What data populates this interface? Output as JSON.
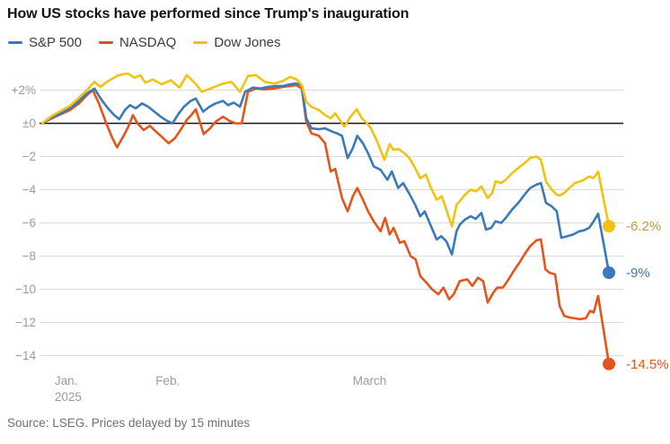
{
  "title": "How US stocks have performed since Trump's inauguration",
  "source": "Source: LSEG. Prices delayed by 15 minutes",
  "legend": [
    {
      "label": "S&P 500",
      "color": "#3a7ab8"
    },
    {
      "label": "NASDAQ",
      "color": "#c8552e"
    },
    {
      "label": "Dow Jones",
      "color": "#ecc20f"
    }
  ],
  "colors": {
    "grid": "#dbdbdb",
    "zero_line": "#141414",
    "axis_text": "#9b9b9b"
  },
  "chart_data": {
    "type": "line",
    "title": "How US stocks have performed since Trump's inauguration",
    "xlabel": "",
    "ylabel": "% change since inauguration",
    "grid": true,
    "legend_position": "top-left",
    "x_axis": {
      "ticks": [
        {
          "label": "Jan.",
          "sublabel": "2025",
          "pos": 0.022
        },
        {
          "label": "Feb.",
          "pos": 0.2
        },
        {
          "label": "March",
          "pos": 0.548
        }
      ]
    },
    "y_axis": {
      "unit": "%",
      "range": [
        -15.6,
        3.3
      ],
      "ticks": [
        {
          "label": "+2%",
          "value": 2
        },
        {
          "label": "±0",
          "value": 0
        },
        {
          "label": "−2",
          "value": -2
        },
        {
          "label": "−4",
          "value": -4
        },
        {
          "label": "−6",
          "value": -6
        },
        {
          "label": "−8",
          "value": -8
        },
        {
          "label": "−10",
          "value": -10
        },
        {
          "label": "−12",
          "value": -12
        },
        {
          "label": "−14",
          "value": -14
        }
      ]
    },
    "series": [
      {
        "name": "S&P 500",
        "color": "#3a7ab8",
        "label_color": "#3a7ab8",
        "end_label": "-9%",
        "end_value": -9.0,
        "points": [
          [
            0,
            0
          ],
          [
            0.017,
            0.35
          ],
          [
            0.033,
            0.6
          ],
          [
            0.049,
            0.9
          ],
          [
            0.065,
            1.35
          ],
          [
            0.079,
            1.8
          ],
          [
            0.092,
            2.1
          ],
          [
            0.103,
            1.5
          ],
          [
            0.116,
            0.9
          ],
          [
            0.127,
            0.5
          ],
          [
            0.136,
            0.25
          ],
          [
            0.146,
            0.8
          ],
          [
            0.155,
            1.1
          ],
          [
            0.165,
            0.9
          ],
          [
            0.176,
            1.2
          ],
          [
            0.187,
            1.0
          ],
          [
            0.198,
            0.7
          ],
          [
            0.209,
            0.4
          ],
          [
            0.22,
            0.15
          ],
          [
            0.23,
            0.0
          ],
          [
            0.241,
            0.6
          ],
          [
            0.25,
            1.0
          ],
          [
            0.262,
            1.35
          ],
          [
            0.271,
            1.5
          ],
          [
            0.284,
            0.7
          ],
          [
            0.295,
            1.0
          ],
          [
            0.306,
            1.2
          ],
          [
            0.319,
            1.35
          ],
          [
            0.328,
            1.1
          ],
          [
            0.338,
            1.25
          ],
          [
            0.349,
            1.0
          ],
          [
            0.358,
            1.9
          ],
          [
            0.372,
            2.15
          ],
          [
            0.385,
            2.1
          ],
          [
            0.399,
            2.2
          ],
          [
            0.412,
            2.25
          ],
          [
            0.425,
            2.25
          ],
          [
            0.437,
            2.35
          ],
          [
            0.449,
            2.4
          ],
          [
            0.458,
            2.3
          ],
          [
            0.466,
            0.3
          ],
          [
            0.475,
            -0.3
          ],
          [
            0.488,
            -0.35
          ],
          [
            0.499,
            -0.3
          ],
          [
            0.512,
            -0.5
          ],
          [
            0.52,
            -0.6
          ],
          [
            0.529,
            -0.75
          ],
          [
            0.539,
            -2.1
          ],
          [
            0.548,
            -1.5
          ],
          [
            0.556,
            -0.75
          ],
          [
            0.566,
            -1.2
          ],
          [
            0.575,
            -1.8
          ],
          [
            0.585,
            -2.6
          ],
          [
            0.597,
            -2.8
          ],
          [
            0.609,
            -3.4
          ],
          [
            0.617,
            -2.9
          ],
          [
            0.628,
            -3.9
          ],
          [
            0.637,
            -3.6
          ],
          [
            0.647,
            -4.2
          ],
          [
            0.658,
            -4.9
          ],
          [
            0.667,
            -5.6
          ],
          [
            0.675,
            -5.3
          ],
          [
            0.686,
            -6.2
          ],
          [
            0.696,
            -7.0
          ],
          [
            0.704,
            -6.8
          ],
          [
            0.713,
            -7.1
          ],
          [
            0.723,
            -7.9
          ],
          [
            0.731,
            -6.5
          ],
          [
            0.737,
            -6.1
          ],
          [
            0.746,
            -5.8
          ],
          [
            0.756,
            -5.6
          ],
          [
            0.765,
            -5.75
          ],
          [
            0.775,
            -5.4
          ],
          [
            0.783,
            -6.4
          ],
          [
            0.792,
            -6.3
          ],
          [
            0.8,
            -5.9
          ],
          [
            0.81,
            -6.0
          ],
          [
            0.818,
            -5.7
          ],
          [
            0.829,
            -5.2
          ],
          [
            0.84,
            -4.8
          ],
          [
            0.851,
            -4.3
          ],
          [
            0.861,
            -3.9
          ],
          [
            0.872,
            -3.7
          ],
          [
            0.88,
            -3.6
          ],
          [
            0.889,
            -4.8
          ],
          [
            0.899,
            -5.0
          ],
          [
            0.908,
            -5.3
          ],
          [
            0.916,
            -6.9
          ],
          [
            0.927,
            -6.8
          ],
          [
            0.937,
            -6.7
          ],
          [
            0.948,
            -6.5
          ],
          [
            0.956,
            -6.45
          ],
          [
            0.965,
            -6.3
          ],
          [
            0.973,
            -5.9
          ],
          [
            0.981,
            -5.45
          ],
          [
            1,
            -9.0
          ]
        ]
      },
      {
        "name": "NASDAQ",
        "color": "#e4551c",
        "label_color": "#e4551c",
        "end_label": "-14.5%",
        "end_value": -14.5,
        "points": [
          [
            0,
            0
          ],
          [
            0.017,
            0.3
          ],
          [
            0.033,
            0.55
          ],
          [
            0.049,
            0.8
          ],
          [
            0.065,
            1.2
          ],
          [
            0.079,
            1.7
          ],
          [
            0.089,
            2.0
          ],
          [
            0.1,
            1.2
          ],
          [
            0.113,
            0.0
          ],
          [
            0.124,
            -0.9
          ],
          [
            0.132,
            -1.45
          ],
          [
            0.143,
            -0.8
          ],
          [
            0.152,
            -0.2
          ],
          [
            0.16,
            0.5
          ],
          [
            0.168,
            0.0
          ],
          [
            0.179,
            -0.4
          ],
          [
            0.19,
            -0.15
          ],
          [
            0.201,
            -0.5
          ],
          [
            0.212,
            -0.85
          ],
          [
            0.223,
            -1.2
          ],
          [
            0.234,
            -0.9
          ],
          [
            0.244,
            -0.4
          ],
          [
            0.255,
            0.2
          ],
          [
            0.263,
            0.5
          ],
          [
            0.271,
            0.85
          ],
          [
            0.285,
            -0.65
          ],
          [
            0.296,
            -0.3
          ],
          [
            0.306,
            0.1
          ],
          [
            0.319,
            0.4
          ],
          [
            0.33,
            0.15
          ],
          [
            0.341,
            0.0
          ],
          [
            0.352,
            0.0
          ],
          [
            0.363,
            1.9
          ],
          [
            0.377,
            2.1
          ],
          [
            0.393,
            2.05
          ],
          [
            0.409,
            2.1
          ],
          [
            0.425,
            2.2
          ],
          [
            0.437,
            2.25
          ],
          [
            0.449,
            2.3
          ],
          [
            0.458,
            2.1
          ],
          [
            0.466,
            0.1
          ],
          [
            0.475,
            -0.6
          ],
          [
            0.488,
            -0.75
          ],
          [
            0.499,
            -1.2
          ],
          [
            0.509,
            -2.9
          ],
          [
            0.517,
            -2.75
          ],
          [
            0.529,
            -4.5
          ],
          [
            0.539,
            -5.3
          ],
          [
            0.548,
            -4.4
          ],
          [
            0.556,
            -3.9
          ],
          [
            0.566,
            -4.6
          ],
          [
            0.575,
            -5.3
          ],
          [
            0.585,
            -5.9
          ],
          [
            0.597,
            -6.5
          ],
          [
            0.605,
            -5.7
          ],
          [
            0.613,
            -6.7
          ],
          [
            0.62,
            -6.3
          ],
          [
            0.631,
            -7.2
          ],
          [
            0.639,
            -7.1
          ],
          [
            0.65,
            -8.0
          ],
          [
            0.659,
            -8.2
          ],
          [
            0.667,
            -9.2
          ],
          [
            0.678,
            -9.6
          ],
          [
            0.688,
            -10.0
          ],
          [
            0.699,
            -10.3
          ],
          [
            0.708,
            -9.9
          ],
          [
            0.718,
            -10.6
          ],
          [
            0.726,
            -10.3
          ],
          [
            0.737,
            -9.5
          ],
          [
            0.75,
            -9.4
          ],
          [
            0.759,
            -9.8
          ],
          [
            0.769,
            -9.3
          ],
          [
            0.778,
            -9.5
          ],
          [
            0.786,
            -10.8
          ],
          [
            0.796,
            -10.2
          ],
          [
            0.803,
            -9.9
          ],
          [
            0.813,
            -9.9
          ],
          [
            0.823,
            -9.4
          ],
          [
            0.832,
            -8.9
          ],
          [
            0.842,
            -8.4
          ],
          [
            0.851,
            -7.9
          ],
          [
            0.861,
            -7.4
          ],
          [
            0.872,
            -7.05
          ],
          [
            0.88,
            -7.0
          ],
          [
            0.888,
            -8.8
          ],
          [
            0.895,
            -9.0
          ],
          [
            0.905,
            -9.1
          ],
          [
            0.913,
            -11.0
          ],
          [
            0.921,
            -11.6
          ],
          [
            0.93,
            -11.7
          ],
          [
            0.94,
            -11.75
          ],
          [
            0.949,
            -11.8
          ],
          [
            0.959,
            -11.75
          ],
          [
            0.967,
            -11.3
          ],
          [
            0.973,
            -11.4
          ],
          [
            0.981,
            -10.4
          ],
          [
            1,
            -14.5
          ]
        ]
      },
      {
        "name": "Dow Jones",
        "color": "#f0c212",
        "label_color": "#c49a3a",
        "end_label": "-6.2%",
        "end_value": -6.2,
        "points": [
          [
            0,
            0
          ],
          [
            0.017,
            0.45
          ],
          [
            0.033,
            0.75
          ],
          [
            0.049,
            1.05
          ],
          [
            0.065,
            1.55
          ],
          [
            0.079,
            2.0
          ],
          [
            0.092,
            2.5
          ],
          [
            0.103,
            2.2
          ],
          [
            0.116,
            2.55
          ],
          [
            0.132,
            2.85
          ],
          [
            0.141,
            2.95
          ],
          [
            0.151,
            3.0
          ],
          [
            0.163,
            2.75
          ],
          [
            0.173,
            2.9
          ],
          [
            0.182,
            2.45
          ],
          [
            0.195,
            2.65
          ],
          [
            0.211,
            2.35
          ],
          [
            0.227,
            2.6
          ],
          [
            0.242,
            2.15
          ],
          [
            0.255,
            2.9
          ],
          [
            0.269,
            2.45
          ],
          [
            0.282,
            1.9
          ],
          [
            0.301,
            2.15
          ],
          [
            0.319,
            2.4
          ],
          [
            0.334,
            2.5
          ],
          [
            0.349,
            1.9
          ],
          [
            0.363,
            2.85
          ],
          [
            0.377,
            2.9
          ],
          [
            0.393,
            2.5
          ],
          [
            0.409,
            2.4
          ],
          [
            0.425,
            2.55
          ],
          [
            0.437,
            2.8
          ],
          [
            0.449,
            2.65
          ],
          [
            0.458,
            2.3
          ],
          [
            0.466,
            1.3
          ],
          [
            0.475,
            1.0
          ],
          [
            0.488,
            0.8
          ],
          [
            0.499,
            0.5
          ],
          [
            0.509,
            0.3
          ],
          [
            0.517,
            0.6
          ],
          [
            0.525,
            0.2
          ],
          [
            0.533,
            -0.2
          ],
          [
            0.544,
            0.4
          ],
          [
            0.555,
            0.85
          ],
          [
            0.564,
            0.3
          ],
          [
            0.572,
            0.05
          ],
          [
            0.58,
            -0.3
          ],
          [
            0.591,
            -1.1
          ],
          [
            0.604,
            -2.2
          ],
          [
            0.613,
            -1.25
          ],
          [
            0.62,
            -1.6
          ],
          [
            0.629,
            -1.55
          ],
          [
            0.639,
            -1.8
          ],
          [
            0.648,
            -2.1
          ],
          [
            0.658,
            -2.7
          ],
          [
            0.667,
            -3.3
          ],
          [
            0.677,
            -3.1
          ],
          [
            0.686,
            -3.9
          ],
          [
            0.696,
            -4.6
          ],
          [
            0.705,
            -4.4
          ],
          [
            0.713,
            -5.2
          ],
          [
            0.723,
            -6.2
          ],
          [
            0.731,
            -4.9
          ],
          [
            0.737,
            -4.7
          ],
          [
            0.746,
            -4.3
          ],
          [
            0.756,
            -4.0
          ],
          [
            0.765,
            -4.1
          ],
          [
            0.775,
            -3.8
          ],
          [
            0.786,
            -4.5
          ],
          [
            0.794,
            -4.2
          ],
          [
            0.8,
            -3.5
          ],
          [
            0.81,
            -3.6
          ],
          [
            0.818,
            -3.4
          ],
          [
            0.829,
            -3.0
          ],
          [
            0.84,
            -2.7
          ],
          [
            0.851,
            -2.4
          ],
          [
            0.861,
            -2.1
          ],
          [
            0.872,
            -2.0
          ],
          [
            0.88,
            -2.2
          ],
          [
            0.889,
            -3.5
          ],
          [
            0.899,
            -4.0
          ],
          [
            0.908,
            -4.3
          ],
          [
            0.913,
            -4.35
          ],
          [
            0.921,
            -4.2
          ],
          [
            0.93,
            -3.9
          ],
          [
            0.94,
            -3.6
          ],
          [
            0.949,
            -3.5
          ],
          [
            0.956,
            -3.4
          ],
          [
            0.965,
            -3.2
          ],
          [
            0.973,
            -3.3
          ],
          [
            0.981,
            -2.9
          ],
          [
            1,
            -6.2
          ]
        ]
      }
    ]
  }
}
